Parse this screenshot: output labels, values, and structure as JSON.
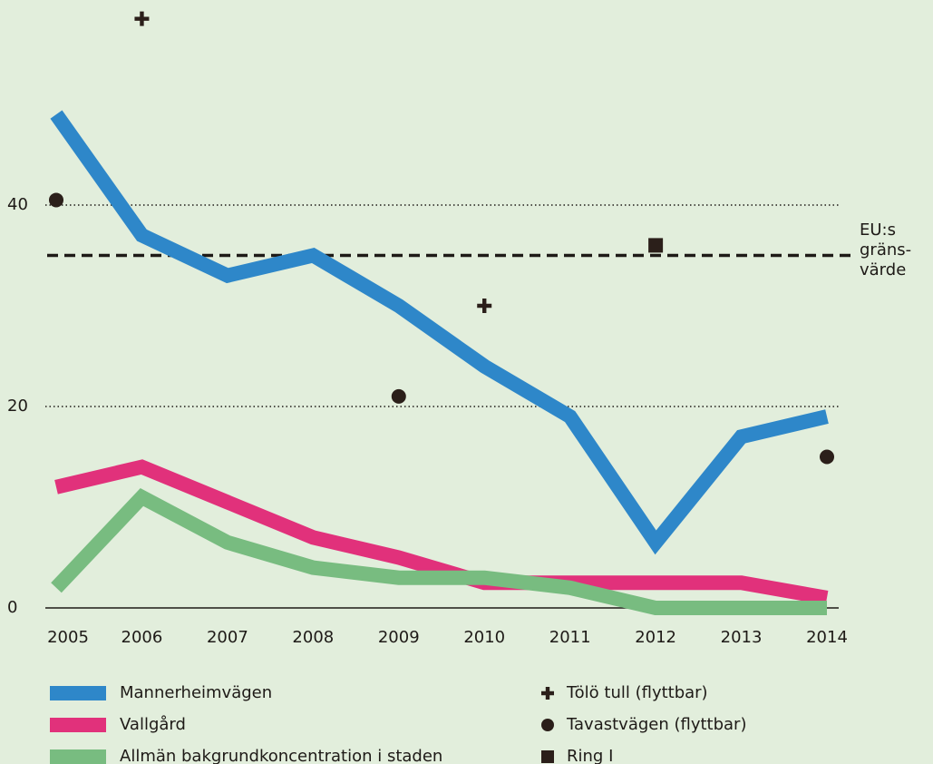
{
  "chart_data": {
    "type": "line",
    "categories": [
      "2005",
      "2006",
      "2007",
      "2008",
      "2009",
      "2010",
      "2011",
      "2012",
      "2013",
      "2014"
    ],
    "series": [
      {
        "name": "Mannerheimvägen",
        "color": "#2e87c9",
        "values": [
          49,
          37,
          33,
          35,
          30,
          24,
          19,
          6.5,
          17,
          19
        ]
      },
      {
        "name": "Vallgård",
        "color": "#e1317b",
        "values": [
          12,
          14,
          10.5,
          7,
          5,
          2.5,
          2.5,
          2.5,
          2.5,
          1
        ]
      },
      {
        "name": "Allmän bakgrundkoncentration i staden",
        "color": "#78bc80",
        "values": [
          2,
          11,
          6.5,
          4,
          3,
          3,
          2,
          0,
          0,
          0
        ]
      },
      {
        "name": "Tölö tull (flyttbar)",
        "color": "#2b1f1a",
        "marker": "cross",
        "values": [
          null,
          58.5,
          null,
          null,
          null,
          30,
          null,
          null,
          null,
          null
        ]
      },
      {
        "name": "Tavastvägen (flyttbar)",
        "color": "#2b1f1a",
        "marker": "circle",
        "values": [
          40.5,
          null,
          null,
          null,
          21,
          null,
          null,
          null,
          null,
          15
        ]
      },
      {
        "name": "Ring I",
        "color": "#2b1f1a",
        "marker": "square",
        "values": [
          null,
          null,
          null,
          null,
          null,
          null,
          null,
          36,
          null,
          null
        ]
      }
    ],
    "reference_line": {
      "value": 35,
      "label": [
        "EU:s",
        "gräns-",
        "värde"
      ]
    },
    "ylim": [
      0,
      60
    ],
    "yticks": [
      0,
      20,
      40
    ],
    "grid": true
  }
}
